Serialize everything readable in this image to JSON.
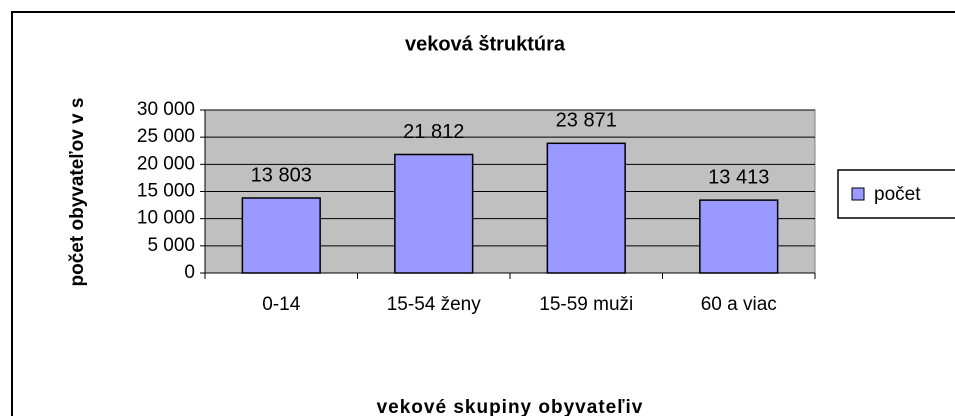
{
  "chart_data": {
    "type": "bar",
    "title": "veková štruktúra",
    "x_label": "vekové skupiny obyvateľiv",
    "y_label": "počet obyvateľov v s",
    "categories": [
      "0-14",
      "15-54 ženy",
      "15-59 muži",
      "60 a viac"
    ],
    "series": [
      {
        "name": "počet",
        "color": "#9999ff",
        "values": [
          13803,
          21812,
          23871,
          13413
        ],
        "value_labels": [
          "13 803",
          "21 812",
          "23 871",
          "13 413"
        ]
      }
    ],
    "ylim": [
      0,
      30000
    ],
    "yticks": [
      0,
      {
        "value": 5000,
        "label": "5 000"
      },
      {
        "value": 10000,
        "label": "10 000"
      },
      {
        "value": 15000,
        "label": "15 000"
      },
      {
        "value": 20000,
        "label": "20 000"
      },
      {
        "value": 25000,
        "label": "25 000"
      },
      {
        "value": 30000,
        "label": "30 000"
      }
    ],
    "grid": true,
    "legend": "right"
  }
}
